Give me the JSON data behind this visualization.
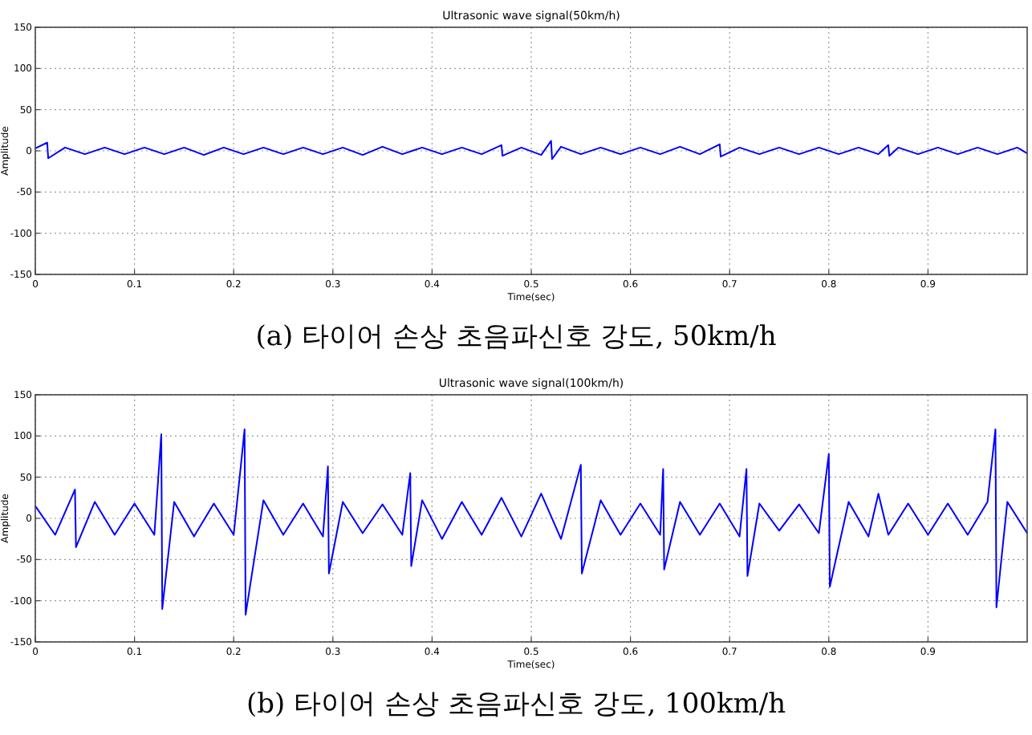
{
  "chart_data": [
    {
      "type": "line",
      "title": "Ultrasonic wave signal(50km/h)",
      "xlabel": "Time(sec)",
      "ylabel": "Amplitude",
      "annotations": [
        "(a) 타이어 손상 초음파신호 강도, 50km/h"
      ],
      "xlim": [
        0,
        1
      ],
      "ylim": [
        -150,
        150
      ],
      "xticks": [
        0,
        0.1,
        0.2,
        0.3,
        0.4,
        0.5,
        0.6,
        0.7,
        0.8,
        0.9
      ],
      "yticks": [
        -150,
        -100,
        -50,
        0,
        50,
        100,
        150
      ],
      "grid": true,
      "line_style": "solid",
      "series": [
        {
          "color": "#0000ff",
          "x": [
            0,
            0.012,
            0.013,
            0.03,
            0.05,
            0.07,
            0.09,
            0.11,
            0.13,
            0.15,
            0.17,
            0.19,
            0.21,
            0.23,
            0.25,
            0.27,
            0.29,
            0.31,
            0.33,
            0.35,
            0.37,
            0.39,
            0.41,
            0.43,
            0.45,
            0.47,
            0.471,
            0.49,
            0.51,
            0.52,
            0.521,
            0.53,
            0.55,
            0.57,
            0.59,
            0.61,
            0.63,
            0.65,
            0.67,
            0.69,
            0.691,
            0.71,
            0.73,
            0.75,
            0.77,
            0.79,
            0.81,
            0.83,
            0.85,
            0.86,
            0.861,
            0.87,
            0.89,
            0.91,
            0.93,
            0.95,
            0.97,
            0.99,
            1
          ],
          "values": [
            3,
            10,
            -9,
            4,
            -4,
            4,
            -4,
            4,
            -4,
            4,
            -5,
            4,
            -4,
            4,
            -4,
            4,
            -4,
            4,
            -5,
            5,
            -4,
            4,
            -4,
            4,
            -4,
            7,
            -6,
            4,
            -5,
            12,
            -10,
            5,
            -4,
            4,
            -4,
            4,
            -4,
            5,
            -4,
            8,
            -7,
            4,
            -4,
            4,
            -4,
            4,
            -4,
            4,
            -4,
            7,
            -6,
            4,
            -4,
            4,
            -4,
            4,
            -4,
            4,
            -3
          ]
        }
      ]
    },
    {
      "type": "line",
      "title": "Ultrasonic wave signal(100km/h)",
      "xlabel": "Time(sec)",
      "ylabel": "Amplitude",
      "annotations": [
        "(b) 타이어 손상 초음파신호 강도, 100km/h"
      ],
      "xlim": [
        0,
        1
      ],
      "ylim": [
        -150,
        150
      ],
      "xticks": [
        0,
        0.1,
        0.2,
        0.3,
        0.4,
        0.5,
        0.6,
        0.7,
        0.8,
        0.9
      ],
      "yticks": [
        -150,
        -100,
        -50,
        0,
        50,
        100,
        150
      ],
      "grid": true,
      "line_style": "solid",
      "series": [
        {
          "color": "#0000ff",
          "x": [
            0,
            0.02,
            0.04,
            0.041,
            0.06,
            0.08,
            0.1,
            0.12,
            0.127,
            0.128,
            0.14,
            0.16,
            0.18,
            0.2,
            0.211,
            0.212,
            0.23,
            0.25,
            0.27,
            0.29,
            0.295,
            0.296,
            0.31,
            0.33,
            0.35,
            0.37,
            0.378,
            0.379,
            0.39,
            0.41,
            0.43,
            0.45,
            0.47,
            0.49,
            0.51,
            0.53,
            0.55,
            0.551,
            0.57,
            0.59,
            0.61,
            0.63,
            0.633,
            0.634,
            0.65,
            0.67,
            0.69,
            0.71,
            0.717,
            0.718,
            0.73,
            0.75,
            0.77,
            0.79,
            0.8,
            0.801,
            0.82,
            0.84,
            0.85,
            0.86,
            0.88,
            0.9,
            0.92,
            0.94,
            0.96,
            0.968,
            0.969,
            0.98,
            1
          ],
          "values": [
            15,
            -20,
            35,
            -35,
            20,
            -20,
            18,
            -20,
            102,
            -110,
            20,
            -22,
            18,
            -20,
            108,
            -117,
            22,
            -20,
            18,
            -22,
            63,
            -67,
            20,
            -18,
            17,
            -20,
            55,
            -58,
            22,
            -25,
            20,
            -20,
            25,
            -22,
            30,
            -25,
            65,
            -67,
            22,
            -20,
            18,
            -20,
            60,
            -62,
            20,
            -20,
            18,
            -22,
            60,
            -70,
            18,
            -15,
            17,
            -18,
            78,
            -83,
            20,
            -22,
            30,
            -20,
            18,
            -20,
            18,
            -20,
            20,
            108,
            -108,
            20,
            -18
          ]
        }
      ]
    }
  ]
}
